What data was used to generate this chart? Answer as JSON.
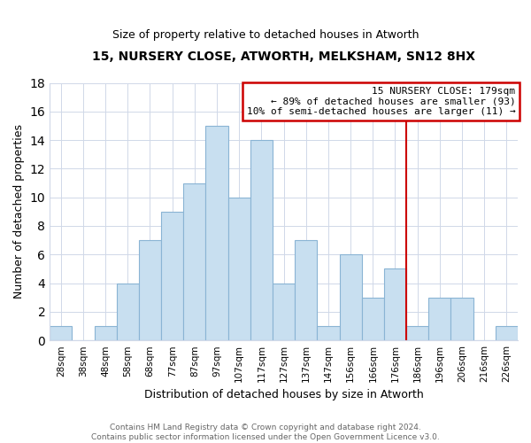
{
  "title": "15, NURSERY CLOSE, ATWORTH, MELKSHAM, SN12 8HX",
  "subtitle": "Size of property relative to detached houses in Atworth",
  "xlabel": "Distribution of detached houses by size in Atworth",
  "ylabel": "Number of detached properties",
  "bin_labels": [
    "28sqm",
    "38sqm",
    "48sqm",
    "58sqm",
    "68sqm",
    "77sqm",
    "87sqm",
    "97sqm",
    "107sqm",
    "117sqm",
    "127sqm",
    "137sqm",
    "147sqm",
    "156sqm",
    "166sqm",
    "176sqm",
    "186sqm",
    "196sqm",
    "206sqm",
    "216sqm",
    "226sqm"
  ],
  "bar_heights": [
    1,
    0,
    1,
    4,
    7,
    9,
    11,
    15,
    10,
    14,
    4,
    7,
    1,
    6,
    3,
    5,
    1,
    3,
    3,
    0,
    1
  ],
  "bar_color": "#c8dff0",
  "bar_edge_color": "#8ab4d4",
  "vline_x_index": 15,
  "vline_color": "#cc0000",
  "annotation_title": "15 NURSERY CLOSE: 179sqm",
  "annotation_line1": "← 89% of detached houses are smaller (93)",
  "annotation_line2": "10% of semi-detached houses are larger (11) →",
  "annotation_box_color": "#ffffff",
  "annotation_box_edge": "#cc0000",
  "ylim": [
    0,
    18
  ],
  "yticks": [
    0,
    2,
    4,
    6,
    8,
    10,
    12,
    14,
    16,
    18
  ],
  "footer_line1": "Contains HM Land Registry data © Crown copyright and database right 2024.",
  "footer_line2": "Contains public sector information licensed under the Open Government Licence v3.0.",
  "background_color": "#ffffff",
  "grid_color": "#d0d8e8"
}
